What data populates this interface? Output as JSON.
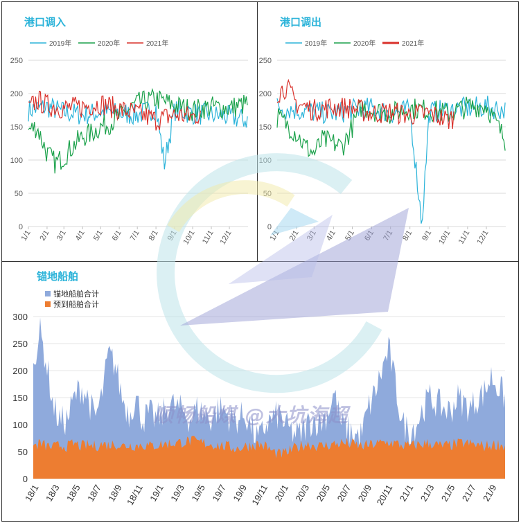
{
  "chart_data": [
    {
      "type": "line",
      "title": "港口调入",
      "x_ticks": [
        "1/1",
        "2/1",
        "3/1",
        "4/1",
        "5/1",
        "6/1",
        "7/1",
        "8/1",
        "9/1",
        "10/1",
        "11/1",
        "12/1"
      ],
      "ylim": [
        0,
        250
      ],
      "y_ticks": [
        0,
        50,
        100,
        150,
        200,
        250
      ],
      "grid": true,
      "legend_position": "top-left",
      "series": [
        {
          "name": "2019年",
          "color": "#2bb3d9",
          "x": [
            "1/1",
            "2/1",
            "3/1",
            "4/1",
            "5/1",
            "6/1",
            "7/1",
            "8/1",
            "8/15",
            "9/1",
            "10/1",
            "11/1",
            "12/1",
            "12/31"
          ],
          "values": [
            175,
            180,
            172,
            168,
            172,
            170,
            168,
            178,
            95,
            175,
            170,
            168,
            165,
            160
          ]
        },
        {
          "name": "2020年",
          "color": "#1aa14a",
          "x": [
            "1/1",
            "1/15",
            "2/1",
            "2/15",
            "3/1",
            "3/15",
            "4/1",
            "4/15",
            "5/1",
            "5/15",
            "6/1",
            "7/1",
            "8/1",
            "9/1",
            "10/1",
            "11/1",
            "12/1",
            "12/31"
          ],
          "values": [
            145,
            150,
            110,
            95,
            105,
            120,
            135,
            140,
            150,
            155,
            165,
            185,
            192,
            182,
            175,
            180,
            178,
            185
          ]
        },
        {
          "name": "2021年",
          "color": "#d9302a",
          "x": [
            "1/1",
            "1/15",
            "2/1",
            "3/1",
            "4/1",
            "5/1",
            "6/1",
            "7/1",
            "8/1",
            "9/1",
            "10/1",
            "10/15"
          ],
          "values": [
            175,
            190,
            182,
            178,
            180,
            185,
            176,
            170,
            160,
            168,
            165,
            170
          ]
        }
      ]
    },
    {
      "type": "line",
      "title": "港口调出",
      "x_ticks": [
        "1/1",
        "2/1",
        "3/1",
        "4/1",
        "5/1",
        "6/1",
        "7/1",
        "8/1",
        "9/1",
        "10/1",
        "11/1",
        "12/1"
      ],
      "ylim": [
        0,
        250
      ],
      "y_ticks": [
        0,
        50,
        100,
        150,
        200,
        250
      ],
      "grid": true,
      "legend_position": "top-left",
      "series": [
        {
          "name": "2019年",
          "color": "#2bb3d9",
          "x": [
            "1/1",
            "2/1",
            "3/1",
            "4/1",
            "5/1",
            "6/1",
            "7/1",
            "8/1",
            "8/20",
            "9/1",
            "10/1",
            "11/1",
            "12/1",
            "12/31"
          ],
          "values": [
            180,
            175,
            172,
            170,
            175,
            178,
            170,
            175,
            5,
            172,
            175,
            178,
            180,
            175
          ]
        },
        {
          "name": "2020年",
          "color": "#1aa14a",
          "x": [
            "1/1",
            "1/15",
            "2/1",
            "2/15",
            "3/1",
            "3/15",
            "4/1",
            "4/15",
            "5/1",
            "5/15",
            "6/1",
            "7/1",
            "8/1",
            "9/1",
            "10/1",
            "11/1",
            "12/1",
            "12/31"
          ],
          "values": [
            165,
            155,
            140,
            120,
            110,
            130,
            125,
            120,
            150,
            180,
            175,
            170,
            178,
            175,
            170,
            180,
            182,
            130
          ]
        },
        {
          "name": "2021年",
          "color": "#d9302a",
          "x": [
            "1/1",
            "1/15",
            "2/1",
            "3/1",
            "4/1",
            "5/1",
            "6/1",
            "7/1",
            "8/1",
            "9/1",
            "10/1",
            "10/10"
          ],
          "values": [
            200,
            210,
            185,
            175,
            180,
            178,
            170,
            172,
            168,
            170,
            160,
            165
          ]
        }
      ]
    },
    {
      "type": "area",
      "title": "锚地船舶",
      "x_ticks": [
        "18/1",
        "18/3",
        "18/5",
        "18/7",
        "18/9",
        "18/11",
        "19/1",
        "19/3",
        "19/5",
        "19/7",
        "19/9",
        "19/11",
        "20/1",
        "20/3",
        "20/5",
        "20/7",
        "20/9",
        "20/11",
        "21/1",
        "21/3",
        "21/5",
        "21/7",
        "21/9"
      ],
      "ylim": [
        0,
        300
      ],
      "y_ticks": [
        0,
        50,
        100,
        150,
        200,
        250,
        300
      ],
      "grid": true,
      "legend_position": "top-left",
      "series": [
        {
          "name": "锚地船舶合计",
          "color": "#8faadc",
          "values": [
            220,
            270,
            210,
            130,
            105,
            110,
            150,
            170,
            150,
            110,
            150,
            230,
            210,
            150,
            120,
            150,
            110,
            120,
            110,
            120,
            140,
            130,
            125,
            110,
            130,
            120,
            110,
            130,
            125,
            110,
            110,
            120,
            90,
            70,
            100,
            110,
            120,
            95,
            85,
            80,
            100,
            110,
            105,
            120,
            160,
            100,
            90,
            80,
            80,
            130,
            160,
            200,
            240,
            170,
            100,
            90,
            100,
            130,
            150,
            140,
            130,
            125,
            150,
            140,
            130,
            150,
            160,
            190,
            170,
            150
          ]
        },
        {
          "name": "预到船舶合计",
          "color": "#ed7d31",
          "values": [
            60,
            65,
            60,
            58,
            62,
            60,
            65,
            60,
            62,
            60,
            64,
            62,
            65,
            60,
            62,
            61,
            63,
            60,
            62,
            64,
            65,
            66,
            68,
            70,
            68,
            66,
            64,
            62,
            60,
            58,
            56,
            60,
            62,
            64,
            60,
            50,
            45,
            48,
            55,
            60,
            65,
            62,
            60,
            62,
            64,
            66,
            65,
            63,
            60,
            62,
            64,
            66,
            68,
            65,
            62,
            60,
            62,
            64,
            66,
            62,
            60,
            62,
            64,
            66,
            64,
            62,
            60,
            62,
            64,
            60
          ]
        }
      ]
    }
  ],
  "watermark": "顺畅船煤 @大坑海超"
}
